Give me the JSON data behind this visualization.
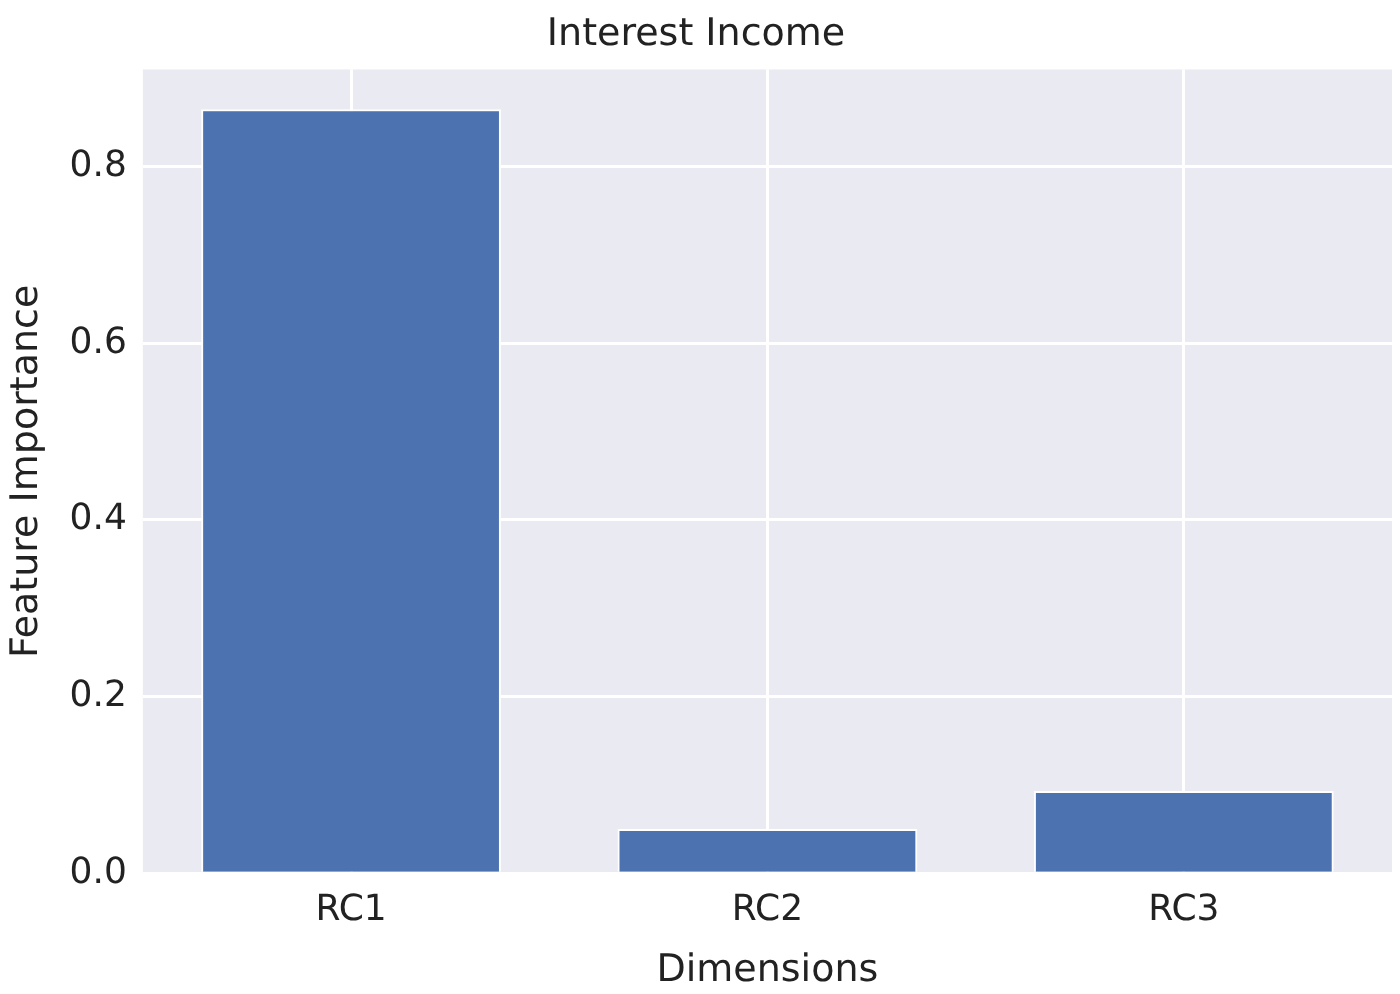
{
  "chart_data": {
    "type": "bar",
    "title": "Interest Income",
    "xlabel": "Dimensions",
    "ylabel": "Feature Importance",
    "categories": [
      "RC1",
      "RC2",
      "RC3"
    ],
    "values": [
      0.865,
      0.05,
      0.093
    ],
    "color": "#4c72b0",
    "ylim": [
      0,
      0.91
    ],
    "yticks": [
      {
        "value": 0,
        "label": "0.0"
      },
      {
        "value": 0.2,
        "label": "0.2"
      },
      {
        "value": 0.4,
        "label": "0.4"
      },
      {
        "value": 0.6,
        "label": "0.6"
      },
      {
        "value": 0.8,
        "label": "0.8"
      }
    ],
    "grid": true
  }
}
